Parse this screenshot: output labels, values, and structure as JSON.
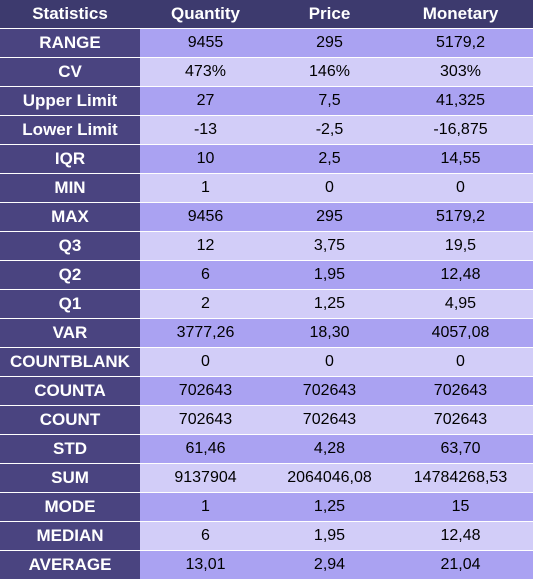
{
  "colors": {
    "header_bg": "#3d3a6e",
    "label_column_bg": "#4a4480",
    "row_odd_bg": "#aaa2f2",
    "row_even_bg": "#d2cdf8"
  },
  "table": {
    "columns": [
      "Statistics",
      "Quantity",
      "Price",
      "Monetary"
    ],
    "rows": [
      {
        "label": "RANGE",
        "quantity": "9455",
        "price": "295",
        "monetary": "5179,2"
      },
      {
        "label": "CV",
        "quantity": "473%",
        "price": "146%",
        "monetary": "303%"
      },
      {
        "label": "Upper Limit",
        "quantity": "27",
        "price": "7,5",
        "monetary": "41,325"
      },
      {
        "label": "Lower Limit",
        "quantity": "-13",
        "price": "-2,5",
        "monetary": "-16,875"
      },
      {
        "label": "IQR",
        "quantity": "10",
        "price": "2,5",
        "monetary": "14,55"
      },
      {
        "label": "MIN",
        "quantity": "1",
        "price": "0",
        "monetary": "0"
      },
      {
        "label": "MAX",
        "quantity": "9456",
        "price": "295",
        "monetary": "5179,2"
      },
      {
        "label": "Q3",
        "quantity": "12",
        "price": "3,75",
        "monetary": "19,5"
      },
      {
        "label": "Q2",
        "quantity": "6",
        "price": "1,95",
        "monetary": "12,48"
      },
      {
        "label": "Q1",
        "quantity": "2",
        "price": "1,25",
        "monetary": "4,95"
      },
      {
        "label": "VAR",
        "quantity": "3777,26",
        "price": "18,30",
        "monetary": "4057,08"
      },
      {
        "label": "COUNTBLANK",
        "quantity": "0",
        "price": "0",
        "monetary": "0"
      },
      {
        "label": "COUNTA",
        "quantity": "702643",
        "price": "702643",
        "monetary": "702643"
      },
      {
        "label": "COUNT",
        "quantity": "702643",
        "price": "702643",
        "monetary": "702643"
      },
      {
        "label": "STD",
        "quantity": "61,46",
        "price": "4,28",
        "monetary": "63,70"
      },
      {
        "label": "SUM",
        "quantity": "9137904",
        "price": "2064046,08",
        "monetary": "14784268,53"
      },
      {
        "label": "MODE",
        "quantity": "1",
        "price": "1,25",
        "monetary": "15"
      },
      {
        "label": "MEDIAN",
        "quantity": "6",
        "price": "1,95",
        "monetary": "12,48"
      },
      {
        "label": "AVERAGE",
        "quantity": "13,01",
        "price": "2,94",
        "monetary": "21,04"
      }
    ]
  }
}
